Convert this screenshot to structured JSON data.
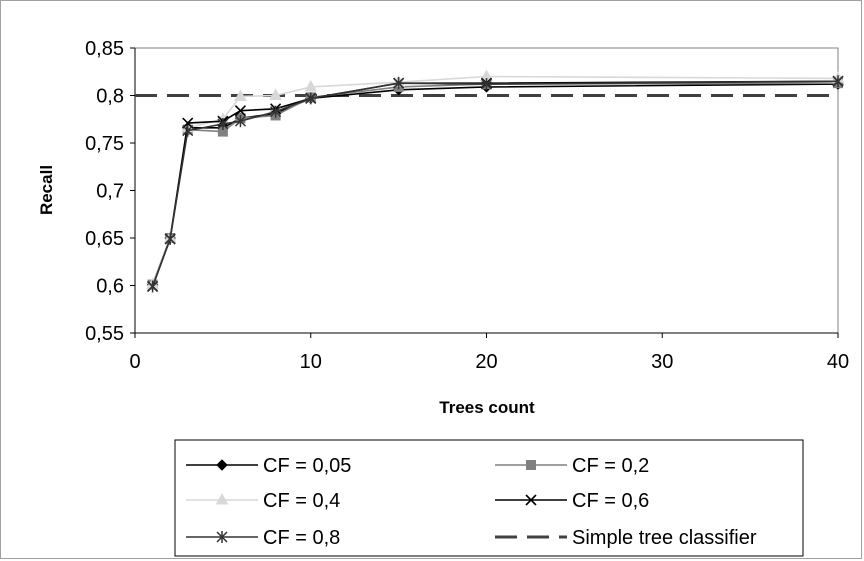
{
  "chart_data": {
    "type": "line",
    "title": "",
    "xlabel": "Trees count",
    "ylabel": "Recall",
    "xlim": [
      0,
      40
    ],
    "ylim": [
      0.55,
      0.85
    ],
    "x_ticks": [
      "0",
      "10",
      "20",
      "30",
      "40"
    ],
    "y_ticks": [
      "0,55",
      "0,6",
      "0,65",
      "0,7",
      "0,75",
      "0,8",
      "0,85"
    ],
    "grid": false,
    "legend_position": "bottom",
    "series": [
      {
        "name": "CF = 0,05",
        "color": "#000000",
        "marker": "diamond",
        "x": [
          1,
          2,
          3,
          5,
          6,
          8,
          10,
          15,
          20,
          40
        ],
        "y": [
          0.601,
          0.65,
          0.766,
          0.766,
          0.776,
          0.781,
          0.797,
          0.806,
          0.809,
          0.812
        ]
      },
      {
        "name": "CF = 0,2",
        "color": "#808080",
        "marker": "square",
        "x": [
          1,
          2,
          3,
          5,
          6,
          8,
          10,
          15,
          20,
          40
        ],
        "y": [
          0.601,
          0.65,
          0.764,
          0.762,
          0.776,
          0.779,
          0.798,
          0.809,
          0.812,
          0.813
        ]
      },
      {
        "name": "CF = 0,4",
        "color": "#d8d8d8",
        "marker": "triangle",
        "x": [
          1,
          2,
          3,
          5,
          6,
          8,
          10,
          15,
          20,
          40
        ],
        "y": [
          0.601,
          0.65,
          0.766,
          0.775,
          0.799,
          0.8,
          0.809,
          0.814,
          0.82,
          0.818
        ]
      },
      {
        "name": "CF = 0,6",
        "color": "#000000",
        "marker": "x",
        "x": [
          1,
          2,
          3,
          5,
          6,
          8,
          10,
          15,
          20,
          40
        ],
        "y": [
          0.599,
          0.649,
          0.771,
          0.773,
          0.784,
          0.786,
          0.797,
          0.813,
          0.813,
          0.815
        ]
      },
      {
        "name": "CF = 0,8",
        "color": "#333333",
        "marker": "star",
        "x": [
          1,
          2,
          3,
          5,
          6,
          8,
          10,
          15,
          20,
          40
        ],
        "y": [
          0.599,
          0.649,
          0.763,
          0.77,
          0.773,
          0.783,
          0.797,
          0.813,
          0.812,
          0.815
        ]
      },
      {
        "name": "Simple tree classifier",
        "color": "#404040",
        "marker": "none",
        "dashed": true,
        "x": [
          0,
          40
        ],
        "y": [
          0.8,
          0.8
        ]
      }
    ]
  }
}
